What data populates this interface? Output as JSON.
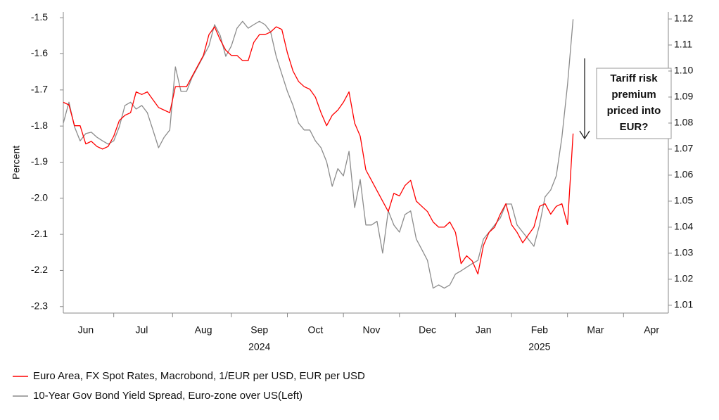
{
  "chart_data": {
    "type": "line",
    "y_label": "Percent",
    "categories": [
      null,
      null,
      null,
      null,
      "Jun",
      null,
      null,
      null,
      null,
      null,
      null,
      null,
      null,
      null,
      "Jul",
      null,
      null,
      null,
      null,
      null,
      null,
      null,
      null,
      null,
      null,
      "Aug",
      null,
      null,
      null,
      null,
      null,
      null,
      null,
      null,
      null,
      "Sep",
      null,
      null,
      null,
      null,
      null,
      null,
      null,
      null,
      null,
      "Oct",
      null,
      null,
      null,
      null,
      null,
      null,
      null,
      null,
      null,
      "Nov",
      null,
      null,
      null,
      null,
      null,
      null,
      null,
      null,
      null,
      "Dec",
      null,
      null,
      null,
      null,
      null,
      null,
      null,
      null,
      null,
      "Jan",
      null,
      null,
      null,
      null,
      null,
      null,
      null,
      null,
      null,
      "Feb",
      null,
      null,
      null,
      null,
      null,
      null,
      null,
      null,
      null,
      "Mar",
      null,
      null,
      null,
      null,
      null,
      null,
      null,
      null,
      null,
      "Apr",
      null,
      null,
      null
    ],
    "year_labels": [
      null,
      null,
      null,
      null,
      null,
      null,
      null,
      null,
      null,
      null,
      null,
      null,
      null,
      null,
      null,
      null,
      null,
      null,
      null,
      null,
      null,
      null,
      null,
      null,
      null,
      null,
      null,
      null,
      null,
      null,
      null,
      null,
      null,
      null,
      null,
      "2024",
      null,
      null,
      null,
      null,
      null,
      null,
      null,
      null,
      null,
      null,
      null,
      null,
      null,
      null,
      null,
      null,
      null,
      null,
      null,
      null,
      null,
      null,
      null,
      null,
      null,
      null,
      null,
      null,
      null,
      null,
      null,
      null,
      null,
      null,
      null,
      null,
      null,
      null,
      null,
      null,
      null,
      null,
      null,
      null,
      null,
      null,
      null,
      null,
      null,
      "2025",
      null,
      null,
      null,
      null,
      null,
      null,
      null,
      null,
      null,
      null,
      null,
      null,
      null,
      null,
      null,
      null,
      null,
      null,
      null,
      null,
      null,
      null,
      null
    ],
    "series": [
      {
        "name": "Euro Area, FX Spot Rates, Macrobond, 1/EUR per USD, EUR per USD",
        "color": "#ff0000",
        "axis": "y2",
        "values": [
          1.088,
          1.087,
          1.079,
          1.079,
          1.072,
          1.073,
          1.071,
          1.07,
          1.071,
          1.075,
          1.081,
          1.083,
          1.084,
          1.092,
          1.091,
          1.092,
          1.089,
          1.086,
          1.085,
          1.084,
          1.094,
          1.094,
          1.094,
          1.098,
          1.102,
          1.106,
          1.114,
          1.117,
          1.112,
          1.108,
          1.106,
          1.106,
          1.104,
          1.104,
          1.111,
          1.114,
          1.114,
          1.115,
          1.117,
          1.116,
          1.107,
          1.1,
          1.096,
          1.094,
          1.093,
          1.09,
          1.084,
          1.079,
          1.083,
          1.085,
          1.088,
          1.092,
          1.08,
          1.075,
          1.062,
          1.058,
          1.054,
          1.05,
          1.046,
          1.053,
          1.052,
          1.056,
          1.058,
          1.05,
          1.048,
          1.046,
          1.042,
          1.04,
          1.04,
          1.042,
          1.038,
          1.026,
          1.029,
          1.027,
          1.022,
          1.033,
          1.038,
          1.04,
          1.045,
          1.049,
          1.041,
          1.038,
          1.034,
          1.037,
          1.04,
          1.048,
          1.049,
          1.045,
          1.048,
          1.049,
          1.041,
          1.076,
          null,
          null,
          null,
          null,
          null,
          null,
          null,
          null,
          null,
          null,
          null,
          null,
          null,
          null,
          null,
          null,
          null
        ]
      },
      {
        "name": "10-Year Gov Bond Yield Spread, Euro-zone over US(Left)",
        "color": "#8c8c8c",
        "axis": "y",
        "values": [
          -1.792,
          -1.734,
          -1.802,
          -1.841,
          -1.821,
          -1.817,
          -1.831,
          -1.841,
          -1.85,
          -1.841,
          -1.802,
          -1.743,
          -1.734,
          -1.753,
          -1.743,
          -1.763,
          -1.811,
          -1.86,
          -1.831,
          -1.811,
          -1.636,
          -1.704,
          -1.704,
          -1.665,
          -1.636,
          -1.607,
          -1.578,
          -1.519,
          -1.549,
          -1.607,
          -1.578,
          -1.529,
          -1.51,
          -1.529,
          -1.519,
          -1.51,
          -1.519,
          -1.539,
          -1.607,
          -1.656,
          -1.704,
          -1.743,
          -1.792,
          -1.811,
          -1.811,
          -1.841,
          -1.86,
          -1.899,
          -1.967,
          -1.918,
          -1.938,
          -1.87,
          -2.026,
          -1.948,
          -2.074,
          -2.074,
          -2.064,
          -2.152,
          -2.035,
          -2.074,
          -2.094,
          -2.045,
          -2.035,
          -2.113,
          -2.142,
          -2.172,
          -2.249,
          -2.24,
          -2.249,
          -2.24,
          -2.21,
          -2.201,
          -2.191,
          -2.181,
          -2.172,
          -2.113,
          -2.094,
          -2.074,
          -2.055,
          -2.016,
          -2.016,
          -2.074,
          -2.094,
          -2.113,
          -2.133,
          -2.074,
          -1.996,
          -1.977,
          -1.938,
          -1.831,
          -1.685,
          -1.504,
          null,
          null,
          null,
          null,
          null,
          null,
          null,
          null,
          null,
          null,
          null,
          null,
          null,
          null,
          null,
          null,
          null
        ]
      }
    ],
    "ylim": [
      -2.318,
      -1.484
    ],
    "yticks": [
      -1.5,
      -1.6,
      -1.7,
      -1.8,
      -1.9,
      {
        "value": -2,
        "label": "-2.0"
      },
      -2.1,
      -2.2,
      -2.3
    ],
    "y2lim": [
      1.007,
      1.1227
    ],
    "y2ticks": [
      1.12,
      1.11,
      {
        "value": 1.1,
        "label": "1.10"
      },
      1.09,
      1.08,
      1.07,
      1.06,
      1.05,
      1.04,
      1.03,
      1.02,
      1.01
    ],
    "annotation": {
      "lines": [
        "Tariff risk",
        "premium",
        "priced into",
        "EUR?"
      ]
    },
    "legend": "bottom-left"
  }
}
